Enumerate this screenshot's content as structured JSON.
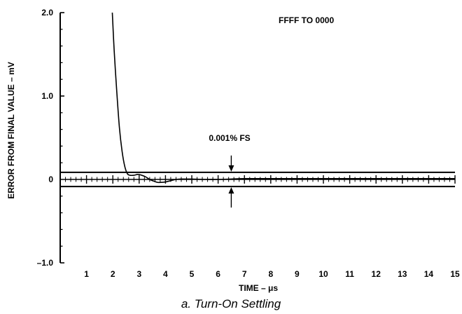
{
  "caption": "a. Turn-On Settling",
  "chart_data": {
    "type": "line",
    "xlabel": "TIME – μs",
    "ylabel": "ERROR FROM FINAL VALUE – mV",
    "xlim": [
      0,
      15
    ],
    "ylim": [
      -1.0,
      2.0
    ],
    "x_ticks": [
      1,
      2,
      3,
      4,
      5,
      6,
      7,
      8,
      9,
      10,
      11,
      12,
      13,
      14,
      15
    ],
    "x_tick_labels": [
      "1",
      "2",
      "3",
      "4",
      "5",
      "6",
      "7",
      "8",
      "9",
      "10",
      "11",
      "12",
      "13",
      "14",
      "15"
    ],
    "y_ticks": [
      2.0,
      1.0,
      0,
      -1.0
    ],
    "y_tick_labels": [
      "2.0",
      "1.0",
      "0",
      "–1.0"
    ],
    "annotations": {
      "transition": "FFFF TO 0000",
      "error_band": "0.001% FS",
      "band_arrow_x": 6.5
    },
    "error_band": [
      -0.085,
      0.085
    ],
    "series": [
      {
        "x": [
          1.98,
          2.05,
          2.15,
          2.25,
          2.35,
          2.45,
          2.55,
          2.65,
          2.8,
          2.95,
          3.1,
          3.25,
          3.4,
          3.55,
          3.7,
          3.85,
          4.0,
          4.2,
          4.4,
          4.6,
          4.8,
          5.0,
          5.5,
          6.0,
          6.5,
          7.0,
          8.0,
          9.0,
          10.0,
          11.0,
          12.0,
          13.0,
          14.0,
          15.0
        ],
        "y": [
          2.0,
          1.55,
          1.05,
          0.62,
          0.34,
          0.16,
          0.07,
          0.05,
          0.05,
          0.06,
          0.05,
          0.03,
          0.0,
          -0.02,
          -0.035,
          -0.035,
          -0.03,
          -0.015,
          0.0,
          0.005,
          0.005,
          0.005,
          0.0,
          0.0,
          0.005,
          0.01,
          0.01,
          0.01,
          0.01,
          0.01,
          0.01,
          0.01,
          0.01,
          0.01
        ]
      }
    ]
  }
}
